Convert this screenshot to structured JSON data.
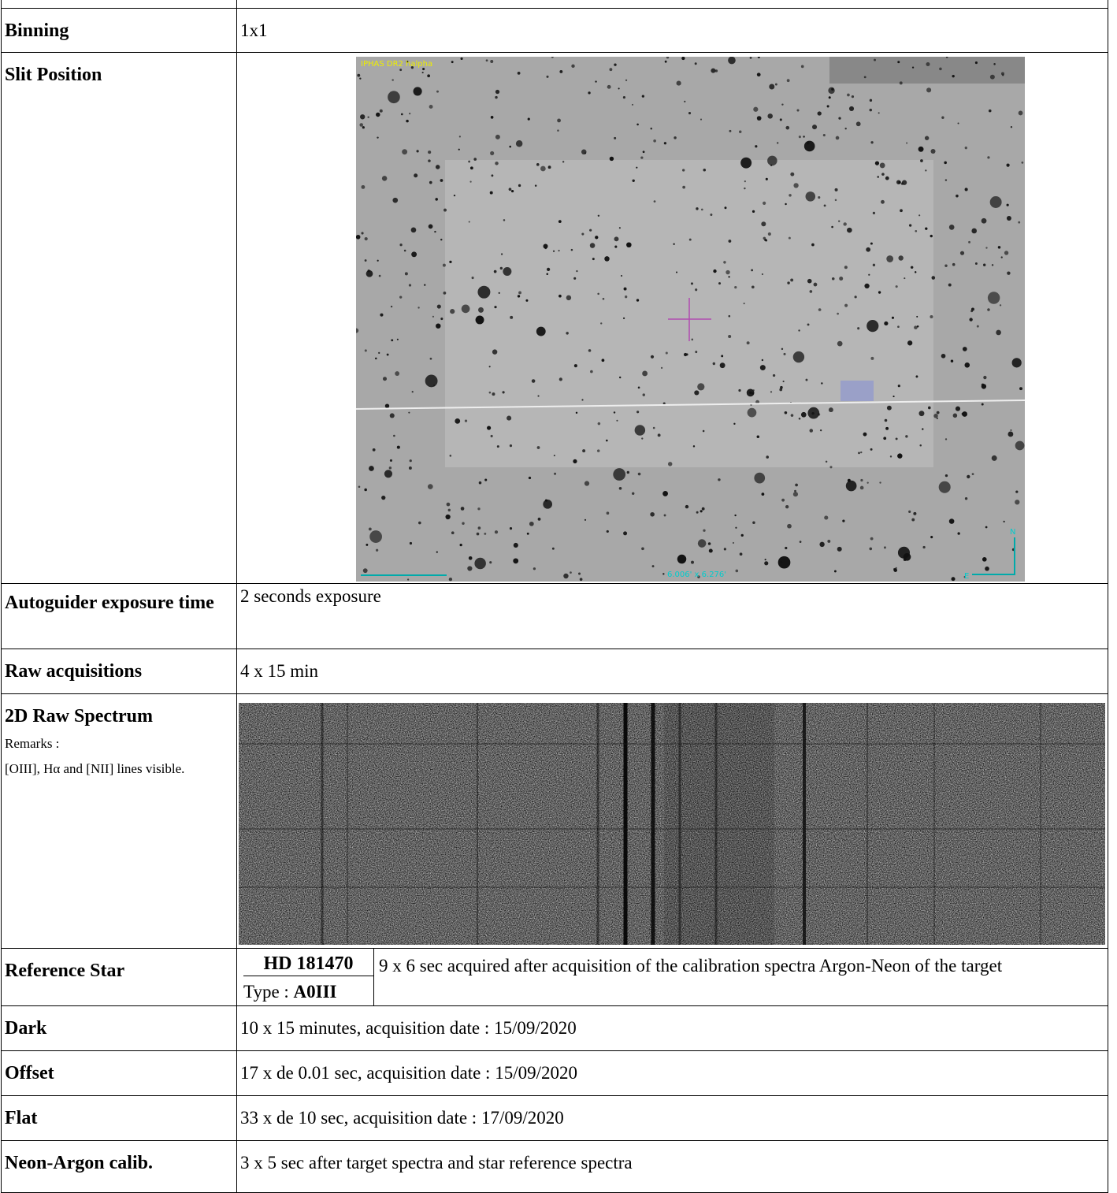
{
  "table": {
    "rows": [
      {
        "label": "Binning",
        "value": "1x1"
      },
      {
        "label": "Slit Position",
        "image": {
          "survey": "IPHAS DR2 halpha",
          "field": "6.006' x 6.276'",
          "north": "N",
          "east": "E"
        }
      },
      {
        "label": "Autoguider exposure time",
        "value": "2 seconds exposure"
      },
      {
        "label": "Raw acquisitions",
        "value": "4 x 15 min"
      },
      {
        "label": "2D Raw Spectrum",
        "remarks_title": "Remarks :",
        "remarks": "[OIII], Hα and [NII] lines visible."
      },
      {
        "label": "Reference Star",
        "star": "HD 181470",
        "type_prefix": "Type :",
        "type": "A0III",
        "value": "9 x 6 sec acquired after acquisition of the calibration spectra Argon-Neon of the target"
      },
      {
        "label": "Dark",
        "value": "10 x 15 minutes, acquisition date : 15/09/2020"
      },
      {
        "label": "Offset",
        "value": "17 x de 0.01 sec, acquisition date : 15/09/2020"
      },
      {
        "label": "Flat",
        "value": "33 x de 10 sec, acquisition date : 17/09/2020"
      },
      {
        "label": "Neon-Argon calib.",
        "value": "3 x 5 sec after target spectra and star reference spectra"
      }
    ]
  }
}
